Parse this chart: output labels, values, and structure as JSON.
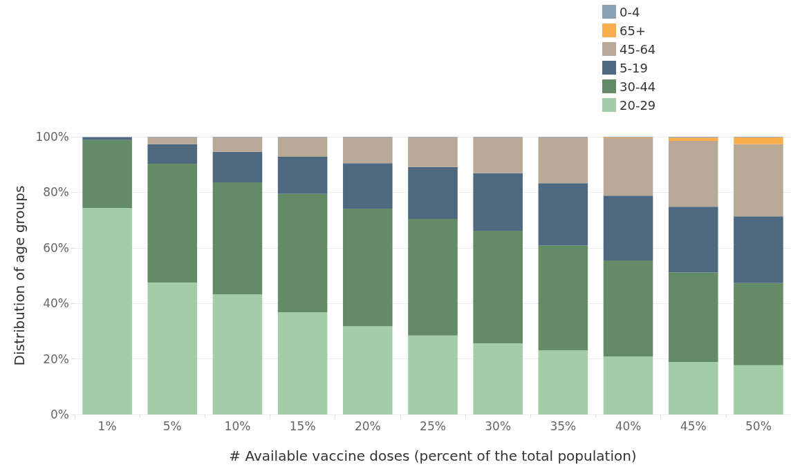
{
  "chart_data": {
    "type": "bar",
    "stacked": true,
    "xlabel": "# Available vaccine doses (percent of the total population)",
    "ylabel": "Distribution of age groups",
    "categories": [
      "1%",
      "5%",
      "10%",
      "15%",
      "20%",
      "25%",
      "30%",
      "35%",
      "40%",
      "45%",
      "50%"
    ],
    "series": [
      {
        "name": "20-29",
        "color": "#a2cda8",
        "values": [
          74.4,
          47.5,
          43.3,
          36.8,
          31.8,
          28.4,
          25.6,
          23.1,
          20.9,
          18.9,
          17.7
        ]
      },
      {
        "name": "30-44",
        "color": "#628b66",
        "values": [
          24.4,
          42.8,
          40.3,
          42.6,
          42.3,
          42.0,
          40.6,
          37.8,
          34.6,
          32.3,
          29.6
        ]
      },
      {
        "name": "5-19",
        "color": "#4e6880",
        "values": [
          1.0,
          7.0,
          11.0,
          13.4,
          16.4,
          18.7,
          20.7,
          22.4,
          23.3,
          23.6,
          24.0
        ]
      },
      {
        "name": "45-64",
        "color": "#b8a996",
        "values": [
          0,
          2.5,
          5.2,
          7.0,
          9.3,
          10.7,
          12.9,
          16.5,
          20.7,
          23.7,
          26.0
        ]
      },
      {
        "name": "65+",
        "color": "#f8ae4c",
        "values": [
          0,
          0,
          0,
          0,
          0,
          0,
          0,
          0,
          0.3,
          1.2,
          2.5
        ]
      },
      {
        "name": "0-4",
        "color": "#8aa1b4",
        "values": [
          0.2,
          0.2,
          0.2,
          0.2,
          0.2,
          0.2,
          0.2,
          0.2,
          0.2,
          0.3,
          0.2
        ]
      }
    ],
    "ylim": [
      0,
      100
    ],
    "yticks": [
      {
        "value": 0,
        "label": "0%"
      },
      {
        "value": 20,
        "label": "20%"
      },
      {
        "value": 40,
        "label": "40%"
      },
      {
        "value": 60,
        "label": "60%"
      },
      {
        "value": 80,
        "label": "80%"
      },
      {
        "value": 100,
        "label": "100%"
      }
    ],
    "grid": "y",
    "legend": "top right"
  }
}
